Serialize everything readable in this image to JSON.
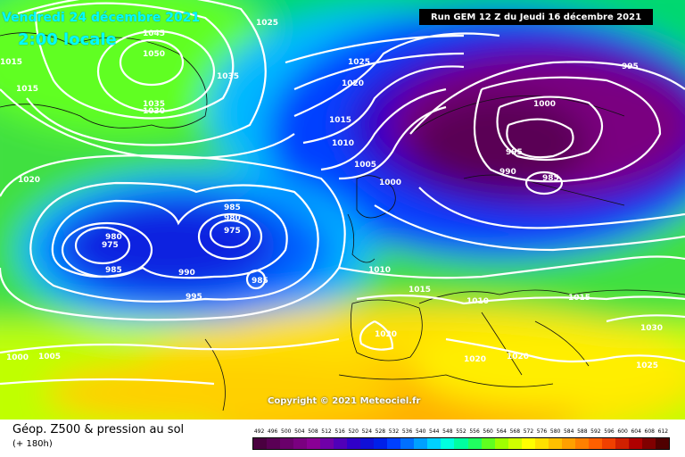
{
  "header": {
    "date": "Vendredi 24 décembre 2021",
    "local_time": "2:00 locale",
    "run_info": "Run GEM 12 Z du Jeudi 16 décembre 2021"
  },
  "copyright": "Copyright © 2021 Meteociel.fr",
  "legend": {
    "title": "Géop. Z500 & pression au sol",
    "step": "(+ 180h)",
    "scale_values": [
      "492",
      "496",
      "500",
      "504",
      "508",
      "512",
      "516",
      "520",
      "524",
      "528",
      "532",
      "536",
      "540",
      "544",
      "548",
      "552",
      "556",
      "560",
      "564",
      "568",
      "572",
      "576",
      "580",
      "584",
      "588",
      "592",
      "596",
      "600",
      "604",
      "608",
      "612"
    ],
    "scale_colors": [
      "#4a0040",
      "#5a0055",
      "#6a006b",
      "#7a0080",
      "#8a0095",
      "#7000a8",
      "#5000b8",
      "#3000c8",
      "#1010d8",
      "#0020e8",
      "#0040ff",
      "#0070ff",
      "#00a0ff",
      "#00d0ff",
      "#00ffe0",
      "#00ffa0",
      "#20ff60",
      "#60ff20",
      "#a0ff00",
      "#d0ff00",
      "#ffff00",
      "#ffe000",
      "#ffc000",
      "#ffa000",
      "#ff8000",
      "#ff6000",
      "#f04000",
      "#d02000",
      "#b00000",
      "#800000",
      "#500000"
    ]
  },
  "isobars": {
    "greenland": [
      "1045",
      "1050",
      "1035",
      "1035",
      "1030",
      "1025"
    ],
    "atlantic_north": [
      "1025",
      "1020",
      "1015",
      "1010",
      "1005",
      "1000"
    ],
    "low_west": [
      "980",
      "975",
      "985"
    ],
    "low_center": [
      "985",
      "980",
      "975",
      "990",
      "985",
      "995"
    ],
    "scandinavia": [
      "995",
      "1000",
      "995",
      "990",
      "985"
    ],
    "south": [
      "1010",
      "1015",
      "1010",
      "1020",
      "1020",
      "1015",
      "1020",
      "1030",
      "1025",
      "1000",
      "1005",
      "1020",
      "1015",
      "1015"
    ]
  }
}
